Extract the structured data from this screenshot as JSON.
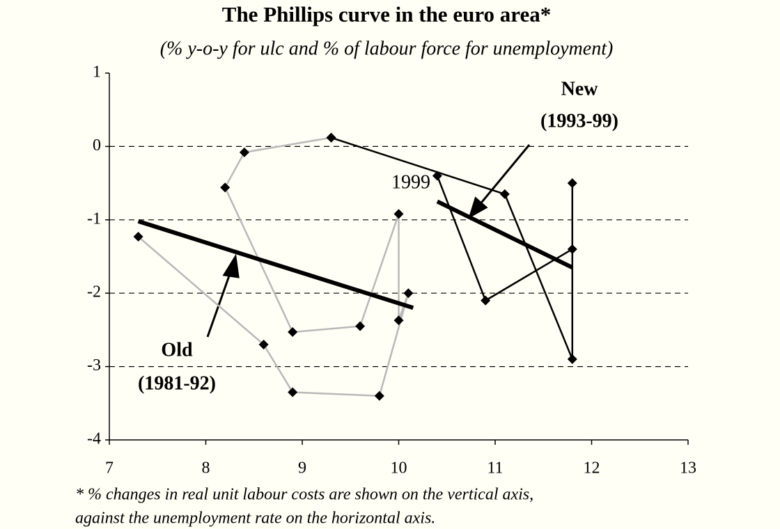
{
  "chart_data": {
    "type": "line",
    "title": "The Phillips curve in the euro area*",
    "subtitle": "(% y-o-y for ulc and % of labour force for unemployment)",
    "footnote": [
      "* % changes in real unit labour costs are shown on the vertical axis,",
      "against the unemployment rate on the horizontal axis."
    ],
    "xlim": [
      7,
      13
    ],
    "xticks": [
      7,
      8,
      9,
      10,
      11,
      12,
      13
    ],
    "ylim": [
      -4,
      1
    ],
    "yticks": [
      1,
      0,
      -1,
      -2,
      -3,
      -4
    ],
    "grid": [
      0,
      -1,
      -2,
      -3
    ],
    "series": [
      {
        "color": "#b8b8b8",
        "x": [
          7.3,
          8.6,
          8.9,
          9.8,
          10.1,
          10.0,
          10.0,
          9.6,
          8.9,
          8.2,
          8.4,
          9.3
        ],
        "values": [
          -1.23,
          -2.7,
          -3.35,
          -3.4,
          -2.0,
          -2.37,
          -0.92,
          -2.45,
          -2.53,
          -0.56,
          -0.08,
          0.12
        ]
      },
      {
        "color": "#000000",
        "x": [
          9.3,
          11.1,
          11.8,
          11.8,
          11.8,
          10.9,
          10.4
        ],
        "values": [
          0.12,
          -0.65,
          -2.9,
          -0.5,
          -1.4,
          -2.1,
          -0.4
        ]
      }
    ],
    "trend_lines": [
      {
        "color": "#000000",
        "x": [
          7.3,
          10.15
        ],
        "values": [
          -1.02,
          -2.2
        ]
      },
      {
        "color": "#000000",
        "x": [
          10.4,
          11.8
        ],
        "values": [
          -0.75,
          -1.65
        ]
      }
    ],
    "annotations": [
      "New",
      "(1993-99)",
      "Old",
      "(1981-92)",
      "1999"
    ]
  }
}
